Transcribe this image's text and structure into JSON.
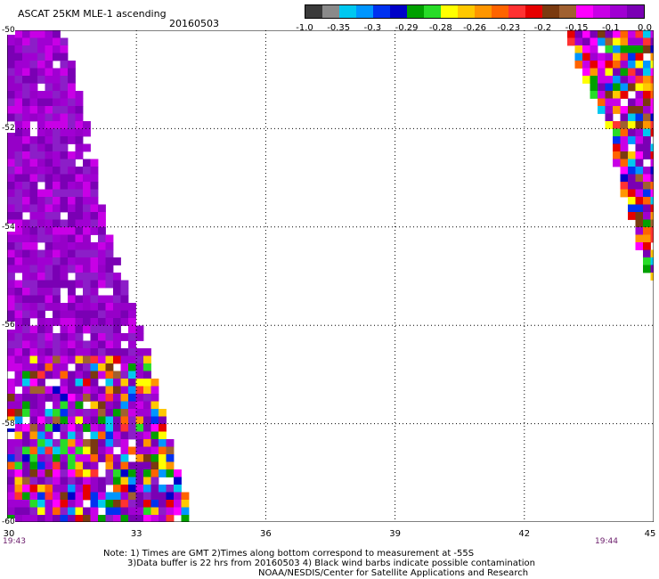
{
  "header": {
    "title": "ASCAT 25KM MLE-1 ascending",
    "date": "20160503"
  },
  "colorbar": {
    "colors": [
      "#3a3a3a",
      "#8a8a8a",
      "#00c8f0",
      "#0096ff",
      "#0032f0",
      "#0000c8",
      "#00a000",
      "#28dc28",
      "#ffff00",
      "#ffc800",
      "#ff9600",
      "#ff6400",
      "#ff3232",
      "#e60000",
      "#7a3a10",
      "#a06030",
      "#ff00ff",
      "#c800e6",
      "#a000d2",
      "#7a00b4"
    ],
    "labels": [
      "-1.0",
      "-0.35",
      "-0.3",
      "-0.29",
      "-0.28",
      "-0.26",
      "-0.23",
      "-0.2",
      "-0.15",
      "-0.1",
      "0.0"
    ]
  },
  "axes": {
    "y_labels": [
      "-50",
      "-52",
      "-54",
      "-56",
      "-58",
      "-60"
    ],
    "x_labels": [
      "30",
      "33",
      "36",
      "39",
      "42",
      "45"
    ]
  },
  "times": {
    "left": "19:43",
    "right": "19:44"
  },
  "notes": {
    "line1": "Note: 1) Times are GMT 2)Times along bottom correspond to measurement at -55S",
    "line2": "3)Data buffer is 22 hrs from 20160503 4) Black wind barbs indicate possible contamination",
    "line3": "NOAA/NESDIS/Center for Satellite Applications and Research"
  },
  "chart_data": {
    "type": "heatmap",
    "title": "ASCAT 25KM MLE-1 ascending",
    "xlim": [
      30,
      45
    ],
    "ylim": [
      -60,
      -50
    ],
    "grid": true,
    "legend": "colorbar top-right",
    "swaths": [
      {
        "edge": "left",
        "lat_range": [
          -60,
          -50
        ],
        "lon_boundary_at_lat": [
          [
            -50,
            31.2
          ],
          [
            -52,
            31.8
          ],
          [
            -54,
            32.2
          ],
          [
            -56,
            33.0
          ],
          [
            -58,
            33.6
          ],
          [
            -60,
            34.2
          ]
        ],
        "value_band_by_lat": [
          [
            -50,
            "-0.1 to 0.0"
          ],
          [
            -56,
            "-0.1 to 0.0"
          ],
          [
            -57,
            "mixed -0.35 to 0.0"
          ],
          [
            -60,
            "mixed -0.35 to 0.0"
          ]
        ]
      },
      {
        "edge": "right",
        "lat_range": [
          -55.0,
          -50
        ],
        "lon_boundary_at_lat": [
          [
            -50,
            43.0
          ],
          [
            -52,
            44.0
          ],
          [
            -54,
            44.6
          ],
          [
            -55,
            44.9
          ]
        ],
        "value_band": "mixed -0.35 to 0.0"
      }
    ]
  }
}
